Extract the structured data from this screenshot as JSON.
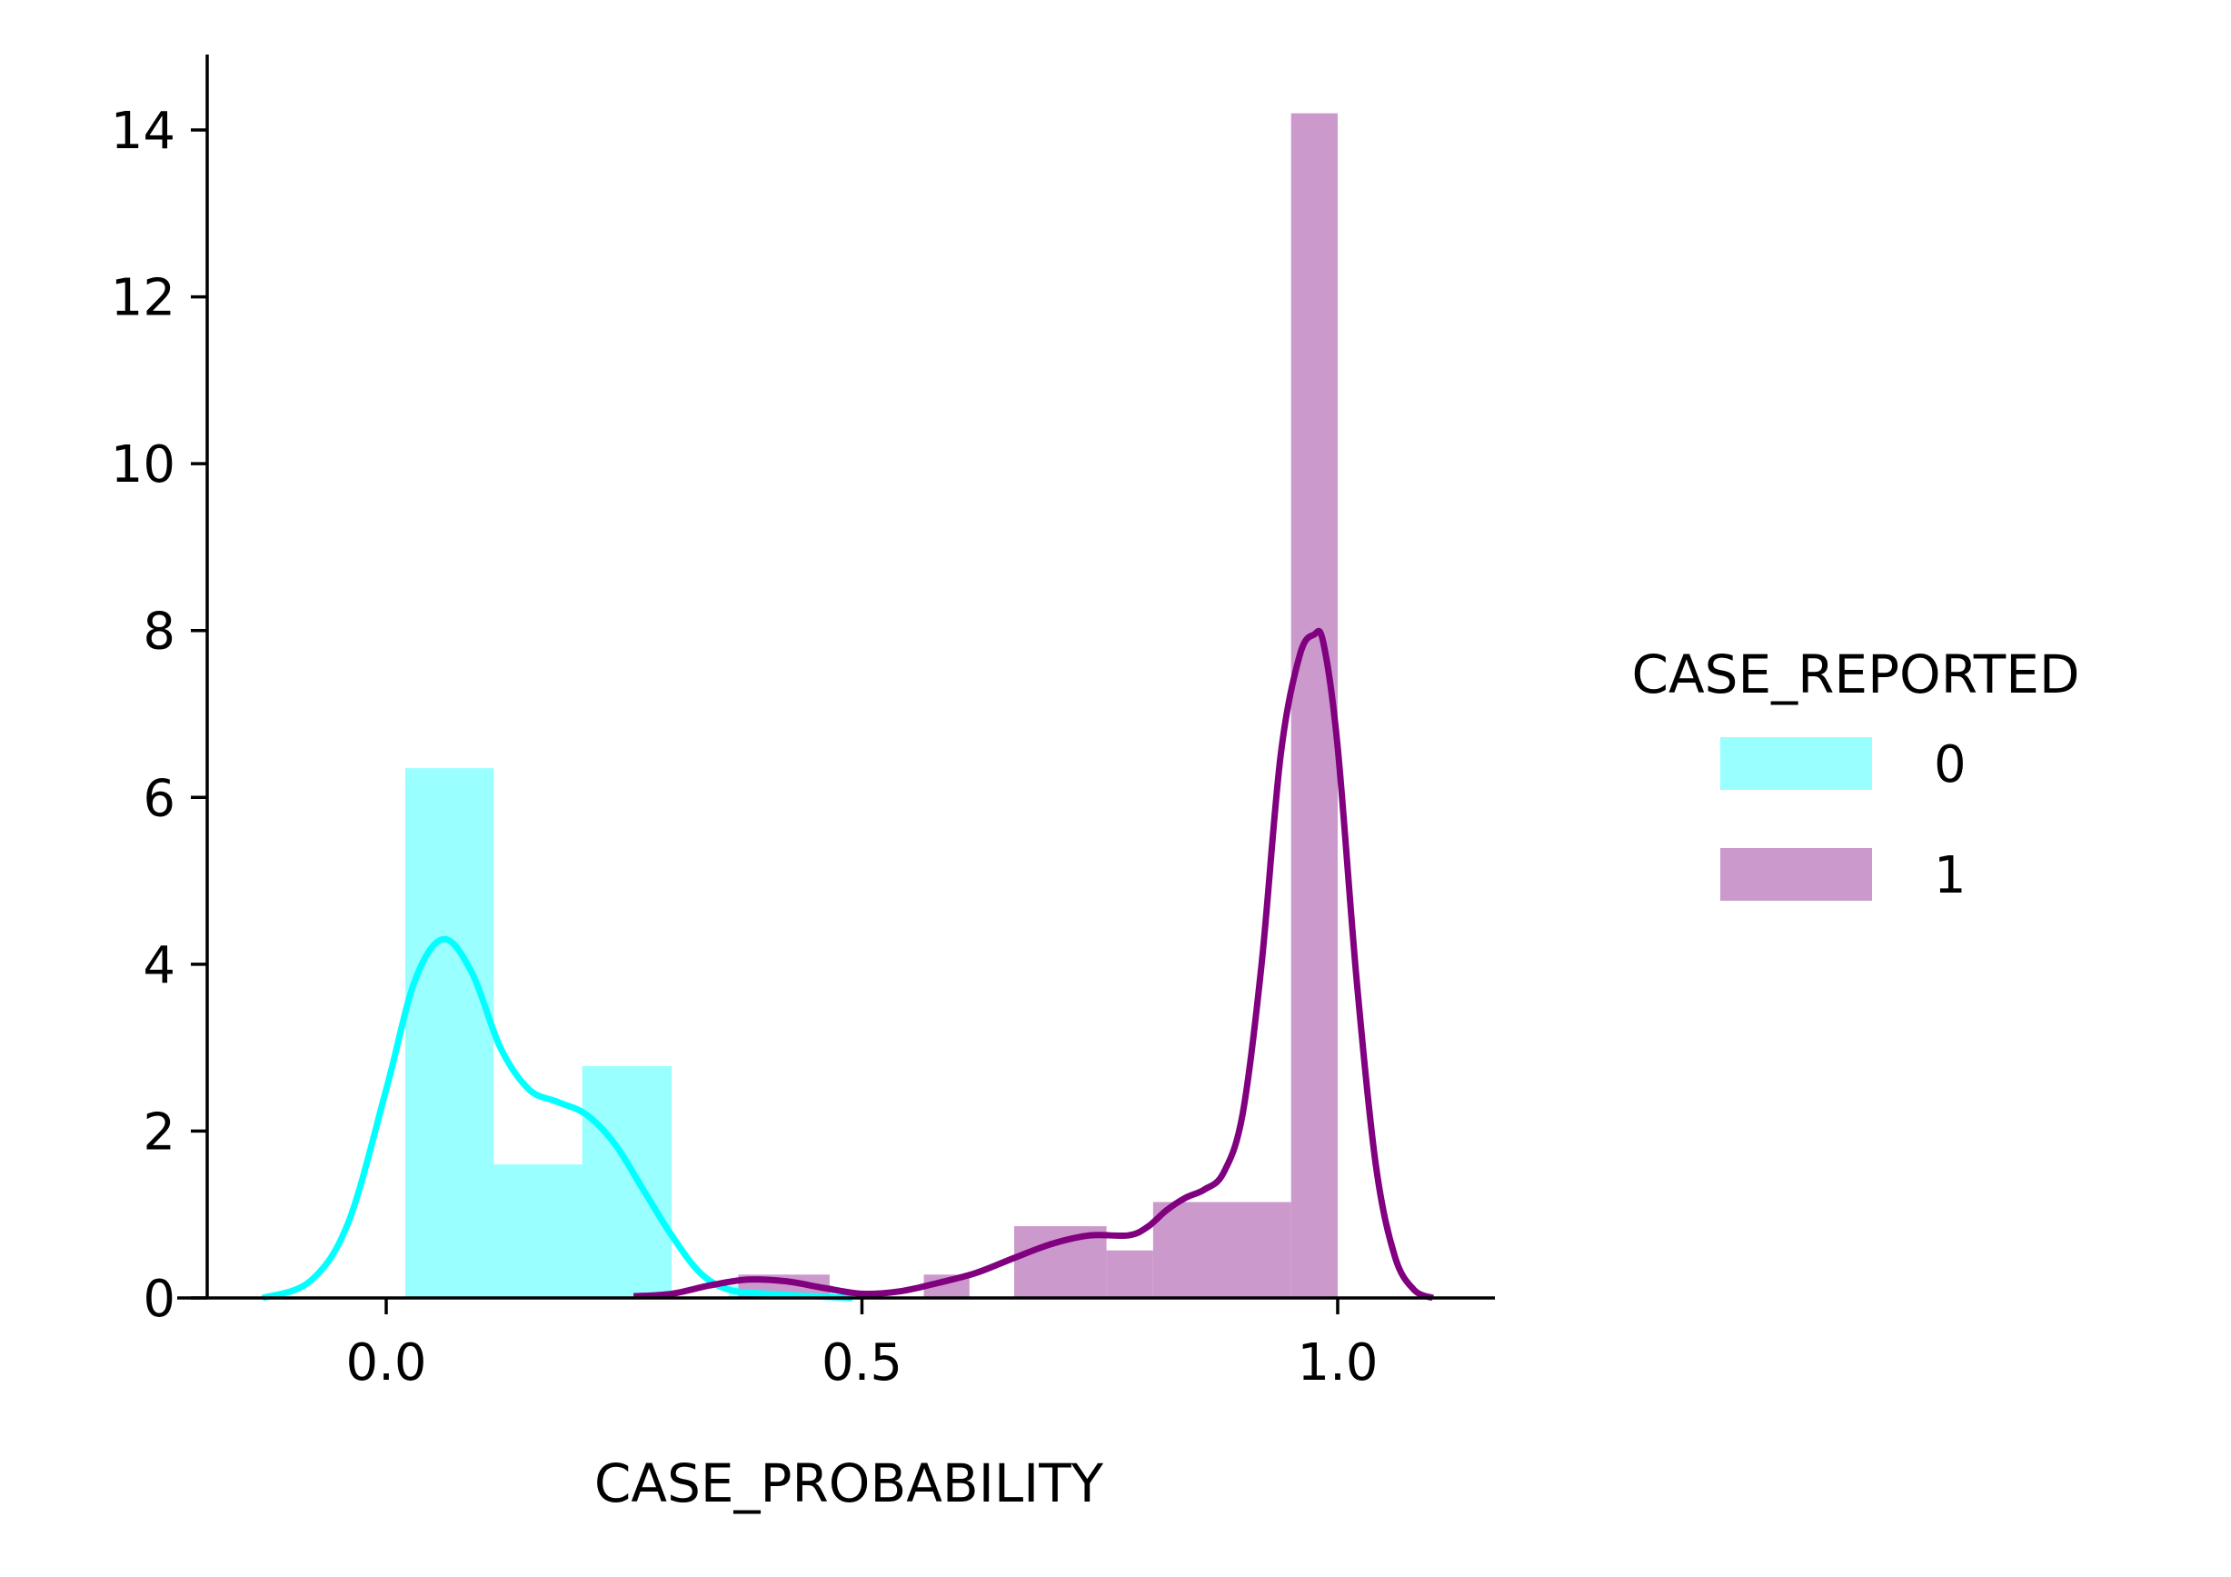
{
  "chart_data": {
    "type": "histogram-kde",
    "xlabel": "CASE_PROBABILITY",
    "ylabel": "",
    "xlim": [
      -0.19,
      1.16
    ],
    "ylim": [
      0,
      14.9
    ],
    "xticks": [
      0.0,
      0.5,
      1.0
    ],
    "xtick_labels": [
      "0.0",
      "0.5",
      "1.0"
    ],
    "yticks": [
      0,
      2,
      4,
      6,
      8,
      10,
      12,
      14
    ],
    "ytick_labels": [
      "0",
      "2",
      "4",
      "6",
      "8",
      "10",
      "12",
      "14"
    ],
    "legend": {
      "title": "CASE_REPORTED",
      "position": "right",
      "entries": [
        {
          "label": "0",
          "color": "#99ffff"
        },
        {
          "label": "1",
          "color": "#cc99cc"
        }
      ]
    },
    "series": [
      {
        "name": "0",
        "hist_color": "#99ffff",
        "line_color": "#00ffff",
        "bins": [
          {
            "x0": 0.02,
            "x1": 0.113,
            "height": 6.35
          },
          {
            "x0": 0.113,
            "x1": 0.206,
            "height": 1.6
          },
          {
            "x0": 0.206,
            "x1": 0.3,
            "height": 2.78
          },
          {
            "x0": 0.3,
            "x1": 0.36,
            "height": 0.0
          },
          {
            "x0": 0.36,
            "x1": 0.47,
            "height": 0.15
          }
        ],
        "kde": {
          "x": [
            -0.13,
            -0.08,
            -0.04,
            0.0,
            0.03,
            0.06,
            0.09,
            0.12,
            0.15,
            0.18,
            0.21,
            0.24,
            0.27,
            0.3,
            0.33,
            0.36,
            0.4,
            0.45,
            0.49
          ],
          "y": [
            0.0,
            0.2,
            0.9,
            2.5,
            3.8,
            4.3,
            3.9,
            3.0,
            2.5,
            2.35,
            2.2,
            1.85,
            1.3,
            0.75,
            0.3,
            0.1,
            0.05,
            0.02,
            0.0
          ]
        }
      },
      {
        "name": "1",
        "hist_color": "#cc99cc",
        "line_color": "#800080",
        "bins": [
          {
            "x0": 0.37,
            "x1": 0.466,
            "height": 0.28
          },
          {
            "x0": 0.565,
            "x1": 0.613,
            "height": 0.28
          },
          {
            "x0": 0.66,
            "x1": 0.757,
            "height": 0.86
          },
          {
            "x0": 0.757,
            "x1": 0.806,
            "height": 0.57
          },
          {
            "x0": 0.806,
            "x1": 0.951,
            "height": 1.15
          },
          {
            "x0": 0.951,
            "x1": 1.0,
            "height": 14.2
          }
        ],
        "kde": {
          "x": [
            0.26,
            0.3,
            0.34,
            0.38,
            0.42,
            0.46,
            0.5,
            0.54,
            0.58,
            0.62,
            0.66,
            0.7,
            0.74,
            0.78,
            0.8,
            0.82,
            0.84,
            0.86,
            0.88,
            0.9,
            0.92,
            0.94,
            0.96,
            0.975,
            0.985,
            1.0,
            1.02,
            1.04,
            1.06,
            1.08,
            1.1
          ],
          "y": [
            0.02,
            0.05,
            0.15,
            0.22,
            0.2,
            0.12,
            0.05,
            0.08,
            0.18,
            0.3,
            0.48,
            0.65,
            0.75,
            0.75,
            0.85,
            1.05,
            1.2,
            1.3,
            1.5,
            2.2,
            4.0,
            6.5,
            7.7,
            7.95,
            7.85,
            6.6,
            3.8,
            1.6,
            0.5,
            0.1,
            0.0
          ]
        }
      }
    ]
  }
}
